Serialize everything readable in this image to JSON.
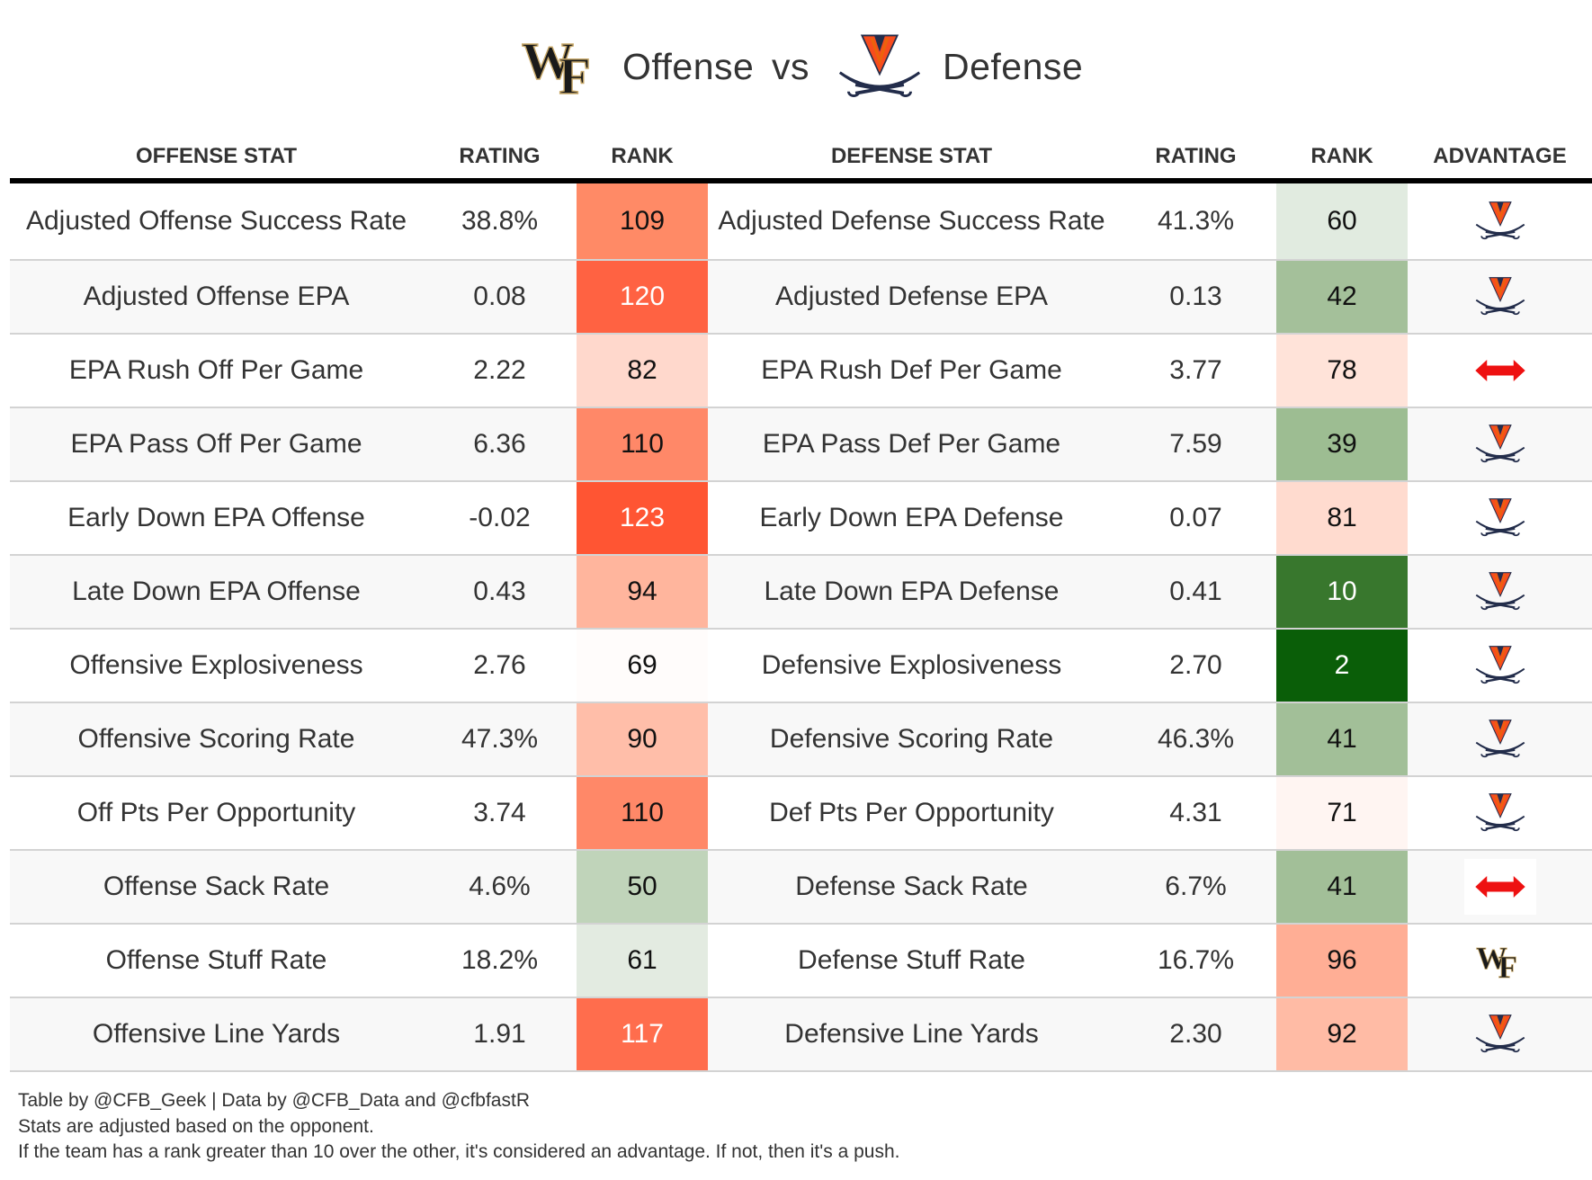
{
  "title": {
    "offense_team_logo": "wake-forest-logo",
    "offense_word": "Offense",
    "vs_word": "vs",
    "defense_team_logo": "virginia-logo",
    "defense_word": "Defense"
  },
  "columns": [
    "OFFENSE STAT",
    "RATING",
    "RANK",
    "DEFENSE STAT",
    "RATING",
    "RANK",
    "ADVANTAGE"
  ],
  "colors": {
    "header_rule": "#000000",
    "row_separator": "#d3d3d3",
    "stripe": "#f8f8f8",
    "push_arrow": "#ee1111",
    "uva_orange": "#f84c1e",
    "uva_navy": "#232d4b",
    "wf_black": "#1a1a1a",
    "wf_gold": "#9e7e38"
  },
  "rows": [
    {
      "off_stat": "Adjusted Offense Success Rate",
      "off_rating": "38.8%",
      "off_rank": "109",
      "off_rank_bg": "#ff8a66",
      "off_rank_light": false,
      "def_stat": "Adjusted Defense Success Rate",
      "def_rating": "41.3%",
      "def_rank": "60",
      "def_rank_bg": "#e1ebe0",
      "def_rank_light": false,
      "advantage": "virginia"
    },
    {
      "off_stat": "Adjusted Offense EPA",
      "off_rating": "0.08",
      "off_rank": "120",
      "off_rank_bg": "#ff6242",
      "off_rank_light": true,
      "def_stat": "Adjusted Defense EPA",
      "def_rating": "0.13",
      "def_rank": "42",
      "def_rank_bg": "#a4c09a",
      "def_rank_light": false,
      "advantage": "virginia"
    },
    {
      "off_stat": "EPA Rush Off Per Game",
      "off_rating": "2.22",
      "off_rank": "82",
      "off_rank_bg": "#ffd8cc",
      "off_rank_light": false,
      "def_stat": "EPA Rush Def Per Game",
      "def_rating": "3.77",
      "def_rank": "78",
      "def_rank_bg": "#ffe3d9",
      "def_rank_light": false,
      "advantage": "push"
    },
    {
      "off_stat": "EPA Pass Off Per Game",
      "off_rating": "6.36",
      "off_rank": "110",
      "off_rank_bg": "#ff8868",
      "off_rank_light": false,
      "def_stat": "EPA Pass Def Per Game",
      "def_rating": "7.59",
      "def_rank": "39",
      "def_rank_bg": "#9dbd92",
      "def_rank_light": false,
      "advantage": "virginia"
    },
    {
      "off_stat": "Early Down EPA Offense",
      "off_rating": "-0.02",
      "off_rank": "123",
      "off_rank_bg": "#ff5533",
      "off_rank_light": true,
      "def_stat": "Early Down EPA Defense",
      "def_rating": "0.07",
      "def_rank": "81",
      "def_rank_bg": "#ffdbcf",
      "def_rank_light": false,
      "advantage": "virginia"
    },
    {
      "off_stat": "Late Down EPA Offense",
      "off_rating": "0.43",
      "off_rank": "94",
      "off_rank_bg": "#ffb59d",
      "off_rank_light": false,
      "def_stat": "Late Down EPA Defense",
      "def_rating": "0.41",
      "def_rank": "10",
      "def_rank_bg": "#38772d",
      "def_rank_light": true,
      "advantage": "virginia"
    },
    {
      "off_stat": "Offensive Explosiveness",
      "off_rating": "2.76",
      "off_rank": "69",
      "off_rank_bg": "#fffcfb",
      "off_rank_light": false,
      "def_stat": "Defensive Explosiveness",
      "def_rating": "2.70",
      "def_rank": "2",
      "def_rank_bg": "#0a5e08",
      "def_rank_light": true,
      "advantage": "virginia"
    },
    {
      "off_stat": "Offensive Scoring Rate",
      "off_rating": "47.3%",
      "off_rank": "90",
      "off_rank_bg": "#ffbea9",
      "off_rank_light": false,
      "def_stat": "Defensive Scoring Rate",
      "def_rating": "46.3%",
      "def_rank": "41",
      "def_rank_bg": "#a2bf98",
      "def_rank_light": false,
      "advantage": "virginia"
    },
    {
      "off_stat": "Off Pts Per Opportunity",
      "off_rating": "3.74",
      "off_rank": "110",
      "off_rank_bg": "#ff8868",
      "off_rank_light": false,
      "def_stat": "Def Pts Per Opportunity",
      "def_rating": "4.31",
      "def_rank": "71",
      "def_rank_bg": "#fff5f2",
      "def_rank_light": false,
      "advantage": "virginia"
    },
    {
      "off_stat": "Offense Sack Rate",
      "off_rating": "4.6%",
      "off_rank": "50",
      "off_rank_bg": "#c0d4ba",
      "off_rank_light": false,
      "def_stat": "Defense Sack Rate",
      "def_rating": "6.7%",
      "def_rank": "41",
      "def_rank_bg": "#a2bf98",
      "def_rank_light": false,
      "advantage": "push-boxed"
    },
    {
      "off_stat": "Offense Stuff Rate",
      "off_rating": "18.2%",
      "off_rank": "61",
      "off_rank_bg": "#e3ebe1",
      "off_rank_light": false,
      "def_stat": "Defense Stuff Rate",
      "def_rating": "16.7%",
      "def_rank": "96",
      "def_rank_bg": "#ffae95",
      "def_rank_light": false,
      "advantage": "wake-forest"
    },
    {
      "off_stat": "Offensive Line Yards",
      "off_rating": "1.91",
      "off_rank": "117",
      "off_rank_bg": "#ff6d4d",
      "off_rank_light": true,
      "def_stat": "Defensive Line Yards",
      "def_rating": "2.30",
      "def_rank": "92",
      "def_rank_bg": "#ffbba5",
      "def_rank_light": false,
      "advantage": "virginia"
    }
  ],
  "footer": {
    "line1": "Table by @CFB_Geek | Data by @CFB_Data and @cfbfastR",
    "line2": "Stats are adjusted based on the opponent.",
    "line3": "If the team has a rank greater than 10 over the other, it's considered an advantage. If not, then it's a push."
  }
}
